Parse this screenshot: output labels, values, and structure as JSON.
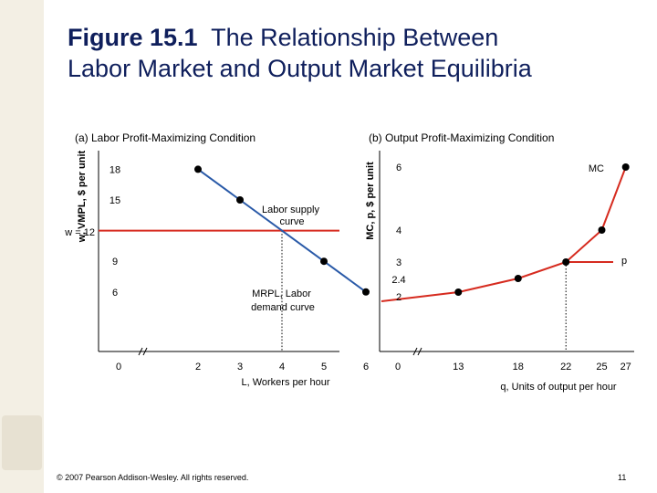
{
  "slide": {
    "figure_label": "Figure 15.1",
    "title_line1": "The Relationship Between",
    "title_line2": "Labor Market and Output Market Equilibria",
    "footer": "© 2007 Pearson Addison-Wesley. All rights reserved.",
    "page_number": "11"
  },
  "chart_data": [
    {
      "type": "line",
      "panel_title": "(a) Labor Profit-Maximizing Condition",
      "ylabel": "w, VMPL, $ per unit",
      "xlabel": "L, Workers per hour",
      "x_ticks": [
        "0",
        "2",
        "3",
        "4",
        "5",
        "6"
      ],
      "y_ticks": [
        "6",
        "9",
        "15",
        "18"
      ],
      "wage_label": "w = 12",
      "series": [
        {
          "name": "MRPL, Labor demand curve",
          "color": "#2a5aa8",
          "points": [
            [
              2,
              18
            ],
            [
              3,
              15
            ],
            [
              4,
              12
            ],
            [
              5,
              9
            ],
            [
              6,
              6
            ]
          ],
          "marked_points": [
            [
              2,
              18
            ],
            [
              3,
              15
            ],
            [
              5,
              9
            ],
            [
              6,
              6
            ]
          ]
        },
        {
          "name": "Labor supply curve",
          "color": "#d62b1f",
          "y": 12
        }
      ],
      "reference_line": {
        "x": 4,
        "style": "dotted"
      },
      "axis_break": true
    },
    {
      "type": "line",
      "panel_title": "(b) Output Profit-Maximizing Condition",
      "ylabel": "MC, p, $ per unit",
      "xlabel": "q, Units of output per hour",
      "x_ticks": [
        "0",
        "13",
        "18",
        "22",
        "25",
        "27"
      ],
      "y_ticks": [
        "2",
        "2.4",
        "3",
        "4",
        "6"
      ],
      "series": [
        {
          "name": "MC",
          "color": "#d62b1f",
          "points": [
            [
              13,
              2
            ],
            [
              18,
              2.4
            ],
            [
              22,
              3
            ],
            [
              25,
              4
            ],
            [
              27,
              6
            ]
          ],
          "marked_points": [
            [
              13,
              2
            ],
            [
              18,
              2.4
            ],
            [
              22,
              3
            ],
            [
              25,
              4
            ],
            [
              27,
              6
            ]
          ]
        },
        {
          "name": "p",
          "color": "#d62b1f",
          "y": 3
        }
      ],
      "reference_line": {
        "x": 22,
        "style": "dotted"
      },
      "axis_break": true
    }
  ]
}
